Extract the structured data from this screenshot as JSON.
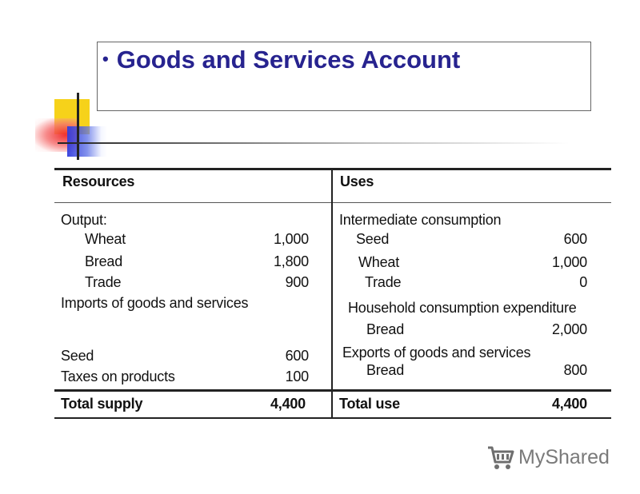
{
  "slide": {
    "bullet": "•",
    "title": "Goods and Services Account"
  },
  "table": {
    "resources_header": "Resources",
    "uses_header": "Uses",
    "resources": {
      "output_label": "Output:",
      "wheat_label": "Wheat",
      "wheat_value": "1,000",
      "bread_label": "Bread",
      "bread_value": "1,800",
      "trade_label": "Trade",
      "trade_value": "900",
      "imports_label": "Imports of goods and services",
      "seed_label": "Seed",
      "seed_value": "600",
      "taxes_label": "Taxes on products",
      "taxes_value": "100"
    },
    "uses": {
      "intermediate_label": "Intermediate consumption",
      "seed_label": "Seed",
      "seed_value": "600",
      "wheat_label": "Wheat",
      "wheat_value": "1,000",
      "trade_label": "Trade",
      "trade_value": "0",
      "household_label": "Household consumption expenditure",
      "bread_label": "Bread",
      "bread_value": "2,000",
      "exports_label": "Exports of goods and services",
      "exports_bread_label": "Bread",
      "exports_bread_value": "800"
    },
    "total_supply_label": "Total supply",
    "total_supply_value": "4,400",
    "total_use_label": "Total use",
    "total_use_value": "4,400"
  },
  "logo": {
    "text": "MyShared",
    "icon": "shopping-cart-icon"
  }
}
